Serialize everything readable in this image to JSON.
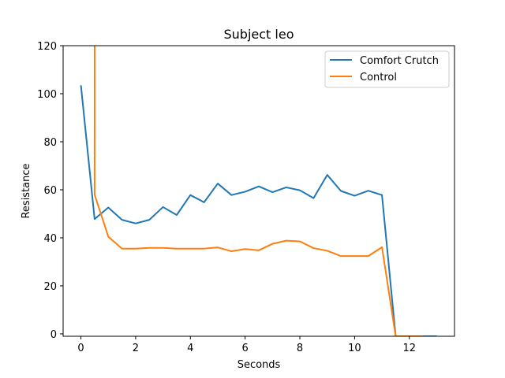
{
  "chart_data": {
    "type": "line",
    "title": "Subject leo",
    "xlabel": "Seconds",
    "ylabel": "Resistance",
    "xlim": [
      -0.65,
      13.65
    ],
    "ylim": [
      -1,
      120
    ],
    "xticks": [
      0,
      2,
      4,
      6,
      8,
      10,
      12
    ],
    "yticks": [
      0,
      20,
      40,
      60,
      80,
      100,
      120
    ],
    "grid": false,
    "legend_position": "top-right",
    "series": [
      {
        "name": "Comfort Crutch",
        "color": "#1f77b4",
        "x": [
          0,
          0.5,
          1,
          1.5,
          2,
          2.5,
          3,
          3.5,
          4,
          4.5,
          5,
          5.5,
          6,
          6.5,
          7,
          7.5,
          8,
          8.5,
          9,
          9.5,
          10,
          10.5,
          11,
          11.5,
          12,
          12.5,
          13
        ],
        "y": [
          103.5,
          47.8,
          52.6,
          47.5,
          46.0,
          47.5,
          52.8,
          49.5,
          57.8,
          54.8,
          62.6,
          57.8,
          59.2,
          61.4,
          59.0,
          61.0,
          59.8,
          56.5,
          66.2,
          59.5,
          57.5,
          59.6,
          57.8,
          -1,
          -1,
          -1,
          -1
        ]
      },
      {
        "name": "Control",
        "color": "#ff7f0e",
        "x": [
          0.5,
          0.5,
          1,
          1.5,
          2,
          2.5,
          3,
          3.5,
          4,
          4.5,
          5,
          5.5,
          6,
          6.5,
          7,
          7.5,
          8,
          8.5,
          9,
          9.5,
          10,
          10.5,
          11,
          11.5,
          12,
          12.5
        ],
        "y": [
          120,
          58.0,
          40.5,
          35.5,
          35.5,
          35.8,
          35.8,
          35.5,
          35.5,
          35.5,
          36.0,
          34.4,
          35.3,
          34.8,
          37.5,
          38.8,
          38.5,
          35.7,
          34.6,
          32.4,
          32.4,
          32.4,
          36.1,
          -1,
          -1,
          -1
        ]
      }
    ]
  }
}
